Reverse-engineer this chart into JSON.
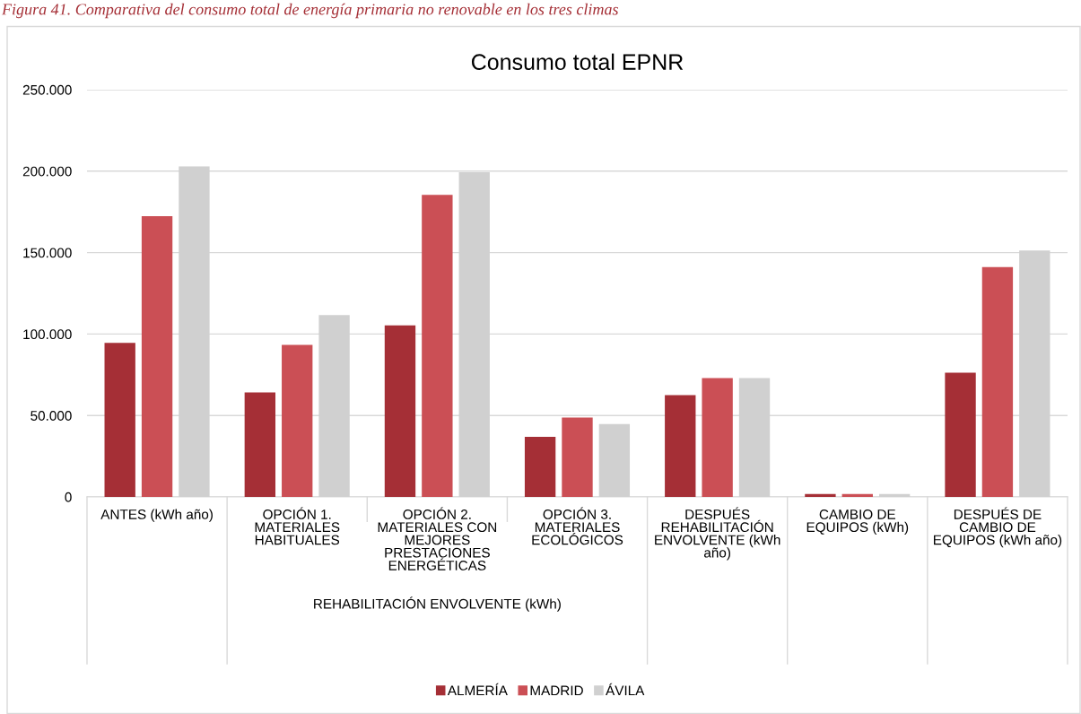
{
  "chart_data": {
    "type": "bar",
    "title": "Consumo total EPNR",
    "categories": [
      "ANTES (kWh año)",
      "OPCIÓN 1.\nMATERIALES\nHABITUALES",
      "OPCIÓN 2.\nMATERIALES CON\nMEJORES\nPRESTACIONES\nENERGÉTICAS",
      "OPCIÓN 3.\nMATERIALES\nECOLÓGICOS",
      "DESPUÉS\nREHABILITACIÓN\nENVOLVENTE (kWh\naño)",
      "CAMBIO DE\nEQUIPOS (kWh)",
      "DESPUÉS DE\nCAMBIO DE\nEQUIPOS (kWh año)"
    ],
    "series": [
      {
        "name": "ALMERÍA",
        "color": "#a52f36",
        "values": [
          94600,
          64100,
          105300,
          36900,
          62500,
          1800,
          76300
        ]
      },
      {
        "name": "MADRID",
        "color": "#cb4f55",
        "values": [
          172400,
          93400,
          185400,
          48700,
          72900,
          1800,
          141100
        ]
      },
      {
        "name": "ÁVILA",
        "color": "#d0d0d0",
        "values": [
          202900,
          111600,
          199300,
          44800,
          72900,
          1800,
          151300
        ]
      }
    ],
    "ylim": [
      0,
      250000
    ],
    "yticks": [
      {
        "value": 0,
        "label": "0"
      },
      {
        "value": 50000,
        "label": "50.000"
      },
      {
        "value": 100000,
        "label": "100.000"
      },
      {
        "value": 150000,
        "label": "150.000"
      },
      {
        "value": 200000,
        "label": "200.000"
      },
      {
        "value": 250000,
        "label": "250.000"
      }
    ],
    "grid": "y",
    "legend": "bottom",
    "annotations": [
      "Figura 41. Comparativa del consumo total de energía primaria no renovable en los tres climas",
      "REHABILITACIÓN ENVOLVENTE (kWh)"
    ]
  }
}
